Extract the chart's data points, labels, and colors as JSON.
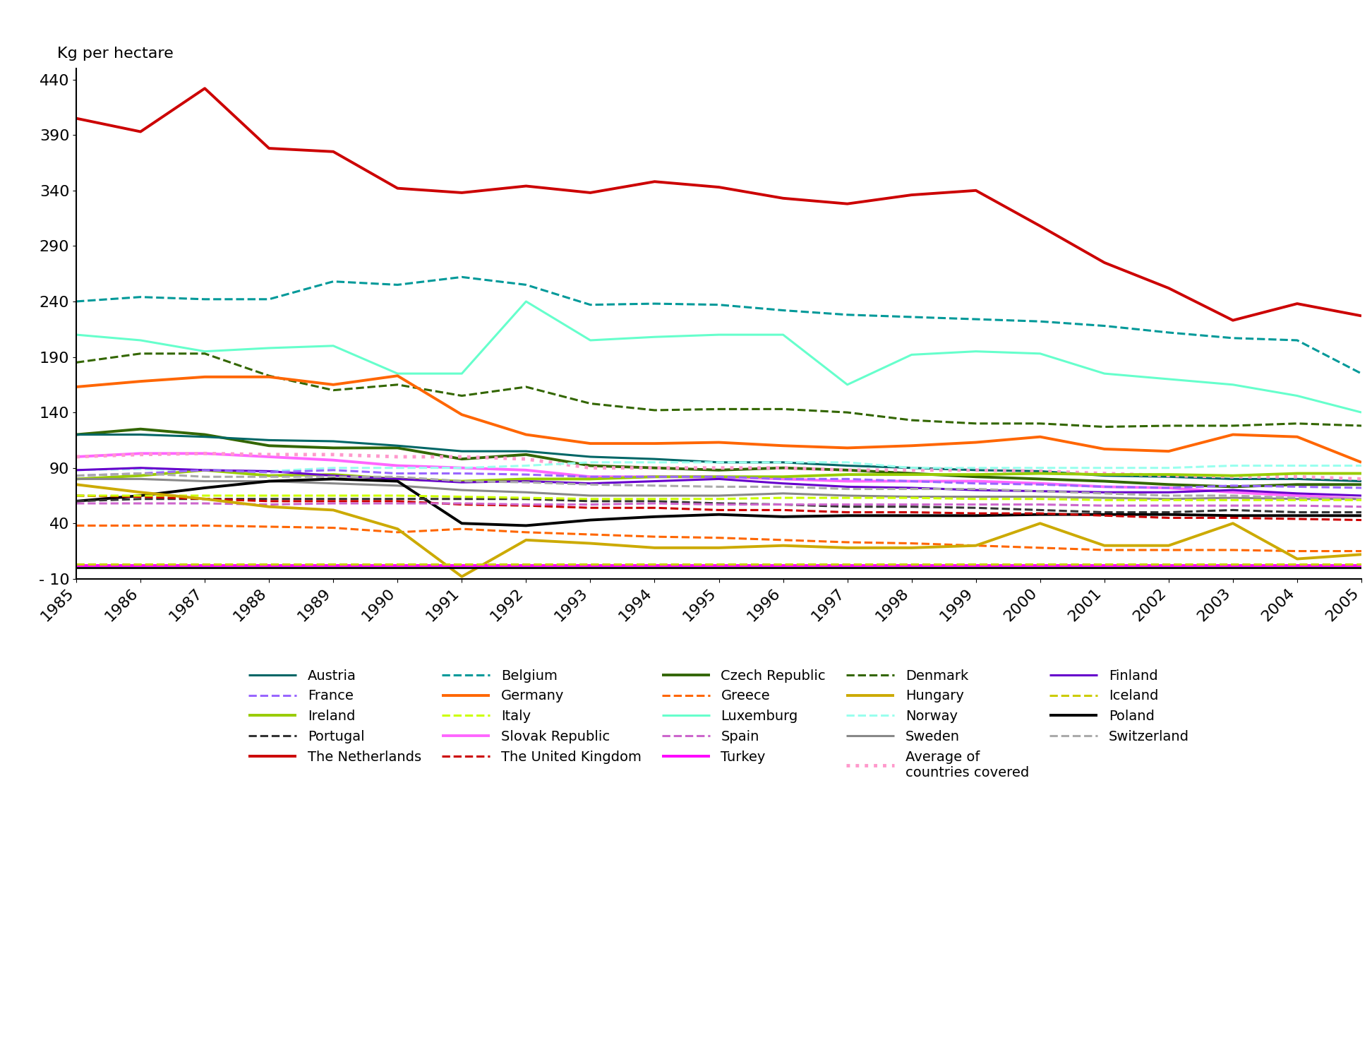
{
  "years": [
    1985,
    1986,
    1987,
    1988,
    1989,
    1990,
    1991,
    1992,
    1993,
    1994,
    1995,
    1996,
    1997,
    1998,
    1999,
    2000,
    2001,
    2002,
    2003,
    2004,
    2005
  ],
  "series": {
    "The Netherlands": {
      "color": "#cc0000",
      "linestyle": "solid",
      "linewidth": 2.8,
      "values": [
        405,
        393,
        432,
        378,
        375,
        342,
        338,
        344,
        338,
        348,
        343,
        333,
        328,
        336,
        340,
        308,
        275,
        252,
        223,
        238,
        227
      ]
    },
    "Belgium": {
      "color": "#009999",
      "linestyle": "dashed",
      "linewidth": 2.2,
      "values": [
        240,
        244,
        242,
        242,
        258,
        255,
        262,
        255,
        237,
        238,
        237,
        232,
        228,
        226,
        224,
        222,
        218,
        212,
        207,
        205,
        175
      ]
    },
    "Luxemburg": {
      "color": "#66ffcc",
      "linestyle": "solid",
      "linewidth": 2.2,
      "values": [
        210,
        205,
        195,
        198,
        200,
        175,
        175,
        240,
        205,
        208,
        210,
        210,
        165,
        192,
        195,
        193,
        175,
        170,
        165,
        155,
        140
      ]
    },
    "Czech Republic": {
      "color": "#336600",
      "linestyle": "solid",
      "linewidth": 2.8,
      "values": [
        120,
        125,
        120,
        110,
        108,
        108,
        98,
        102,
        92,
        90,
        88,
        90,
        88,
        85,
        82,
        80,
        78,
        75,
        73,
        75,
        75
      ]
    },
    "Denmark": {
      "color": "#336600",
      "linestyle": "dashed",
      "linewidth": 2.2,
      "values": [
        185,
        193,
        193,
        173,
        160,
        165,
        155,
        163,
        148,
        142,
        143,
        143,
        140,
        133,
        130,
        130,
        127,
        128,
        128,
        130,
        128
      ]
    },
    "Germany": {
      "color": "#ff6600",
      "linestyle": "solid",
      "linewidth": 2.8,
      "values": [
        163,
        168,
        172,
        172,
        165,
        173,
        138,
        120,
        112,
        112,
        113,
        110,
        108,
        110,
        113,
        118,
        107,
        105,
        120,
        118,
        95
      ]
    },
    "Austria": {
      "color": "#006666",
      "linestyle": "solid",
      "linewidth": 2.2,
      "values": [
        120,
        120,
        118,
        115,
        114,
        110,
        105,
        105,
        100,
        98,
        95,
        95,
        92,
        90,
        88,
        87,
        83,
        82,
        80,
        80,
        78
      ]
    },
    "Slovak Republic": {
      "color": "#ff66ff",
      "linestyle": "solid",
      "linewidth": 2.8,
      "values": [
        100,
        103,
        103,
        100,
        97,
        92,
        90,
        88,
        82,
        82,
        82,
        80,
        78,
        78,
        78,
        76,
        73,
        72,
        68,
        65,
        62
      ]
    },
    "Average of countries covered": {
      "color": "#ff99cc",
      "linestyle": "dotted",
      "linewidth": 3.5,
      "values": [
        100,
        102,
        103,
        102,
        102,
        100,
        100,
        98,
        90,
        90,
        90,
        90,
        88,
        88,
        88,
        87,
        85,
        83,
        82,
        82,
        80
      ]
    },
    "Norway": {
      "color": "#99ffee",
      "linestyle": "dashed",
      "linewidth": 2.2,
      "values": [
        88,
        89,
        88,
        87,
        90,
        90,
        90,
        92,
        95,
        95,
        95,
        95,
        95,
        90,
        90,
        90,
        90,
        90,
        92,
        92,
        92
      ]
    },
    "Ireland": {
      "color": "#99cc00",
      "linestyle": "solid",
      "linewidth": 2.8,
      "values": [
        80,
        83,
        88,
        83,
        84,
        80,
        78,
        80,
        80,
        82,
        82,
        82,
        84,
        84,
        84,
        85,
        84,
        84,
        83,
        85,
        85
      ]
    },
    "Finland": {
      "color": "#6600cc",
      "linestyle": "solid",
      "linewidth": 2.2,
      "values": [
        88,
        90,
        88,
        87,
        83,
        80,
        77,
        78,
        76,
        78,
        80,
        76,
        73,
        72,
        70,
        69,
        68,
        68,
        70,
        67,
        65
      ]
    },
    "France": {
      "color": "#9966ff",
      "linestyle": "dashed",
      "linewidth": 2.2,
      "values": [
        83,
        85,
        88,
        86,
        88,
        85,
        85,
        84,
        82,
        82,
        82,
        80,
        80,
        78,
        76,
        75,
        73,
        72,
        74,
        73,
        72
      ]
    },
    "Sweden": {
      "color": "#888888",
      "linestyle": "solid",
      "linewidth": 2.2,
      "values": [
        80,
        80,
        78,
        78,
        76,
        74,
        70,
        68,
        65,
        65,
        65,
        67,
        65,
        64,
        64,
        64,
        63,
        62,
        63,
        62,
        62
      ]
    },
    "Switzerland": {
      "color": "#aaaaaa",
      "linestyle": "dashed",
      "linewidth": 2.2,
      "values": [
        83,
        85,
        82,
        82,
        82,
        82,
        78,
        77,
        75,
        74,
        73,
        73,
        71,
        71,
        71,
        69,
        67,
        65,
        65,
        63,
        62
      ]
    },
    "Poland": {
      "color": "#000000",
      "linestyle": "solid",
      "linewidth": 2.8,
      "values": [
        60,
        65,
        72,
        78,
        80,
        78,
        40,
        38,
        43,
        46,
        48,
        46,
        47,
        47,
        47,
        48,
        48,
        48,
        47,
        47,
        47
      ]
    },
    "Portugal": {
      "color": "#333333",
      "linestyle": "dashed",
      "linewidth": 2.2,
      "values": [
        60,
        62,
        62,
        62,
        62,
        62,
        62,
        62,
        60,
        60,
        58,
        57,
        55,
        55,
        54,
        52,
        50,
        50,
        52,
        50,
        50
      ]
    },
    "The United Kingdom": {
      "color": "#cc0000",
      "linestyle": "dashed",
      "linewidth": 2.2,
      "values": [
        65,
        64,
        62,
        60,
        60,
        60,
        57,
        56,
        54,
        54,
        52,
        52,
        50,
        50,
        49,
        49,
        47,
        45,
        45,
        44,
        43
      ]
    },
    "Italy": {
      "color": "#ccff00",
      "linestyle": "dashed",
      "linewidth": 2.2,
      "values": [
        65,
        65,
        65,
        65,
        65,
        65,
        64,
        63,
        62,
        62,
        62,
        63,
        63,
        63,
        62,
        62,
        61,
        61,
        61,
        61,
        61
      ]
    },
    "Spain": {
      "color": "#cc66cc",
      "linestyle": "dashed",
      "linewidth": 2.2,
      "values": [
        58,
        58,
        58,
        57,
        58,
        58,
        58,
        57,
        57,
        58,
        57,
        57,
        57,
        57,
        57,
        57,
        56,
        56,
        56,
        56,
        55
      ]
    },
    "Greece": {
      "color": "#ff6600",
      "linestyle": "dashed",
      "linewidth": 2.2,
      "values": [
        38,
        38,
        38,
        37,
        36,
        32,
        35,
        32,
        30,
        28,
        27,
        25,
        23,
        22,
        20,
        18,
        16,
        16,
        16,
        15,
        15
      ]
    },
    "Hungary": {
      "color": "#ccaa00",
      "linestyle": "solid",
      "linewidth": 2.8,
      "values": [
        75,
        68,
        62,
        55,
        52,
        35,
        -8,
        25,
        22,
        18,
        18,
        20,
        18,
        18,
        20,
        40,
        20,
        20,
        40,
        8,
        12
      ]
    },
    "Turkey": {
      "color": "#ff00ff",
      "linestyle": "solid",
      "linewidth": 2.8,
      "values": [
        2,
        2,
        2,
        2,
        2,
        2,
        2,
        2,
        2,
        2,
        2,
        2,
        2,
        2,
        2,
        2,
        2,
        2,
        2,
        2,
        2
      ]
    },
    "Iceland": {
      "color": "#cccc00",
      "linestyle": "dashed",
      "linewidth": 2.2,
      "values": [
        3,
        3,
        3,
        3,
        3,
        3,
        3,
        3,
        3,
        3,
        3,
        3,
        3,
        3,
        3,
        3,
        3,
        3,
        3,
        3,
        3
      ]
    }
  },
  "ylabel": "Kg per hectare",
  "ylim": [
    -10,
    450
  ],
  "yticks": [
    -10,
    40,
    90,
    140,
    190,
    240,
    290,
    340,
    390,
    440
  ],
  "ytick_labels": [
    "- 10",
    "40",
    "90",
    "140",
    "190",
    "240",
    "290",
    "340",
    "390",
    "440"
  ],
  "xlim_min": 1985,
  "xlim_max": 2005,
  "background_color": "#ffffff",
  "legend": [
    {
      "name": "Austria",
      "color": "#006666",
      "linestyle": "solid",
      "linewidth": 2.2
    },
    {
      "name": "France",
      "color": "#9966ff",
      "linestyle": "dashed",
      "linewidth": 2.2
    },
    {
      "name": "Ireland",
      "color": "#99cc00",
      "linestyle": "solid",
      "linewidth": 2.8
    },
    {
      "name": "Portugal",
      "color": "#333333",
      "linestyle": "dashed",
      "linewidth": 2.2
    },
    {
      "name": "The Netherlands",
      "color": "#cc0000",
      "linestyle": "solid",
      "linewidth": 2.8
    },
    {
      "name": "Belgium",
      "color": "#009999",
      "linestyle": "dashed",
      "linewidth": 2.2
    },
    {
      "name": "Germany",
      "color": "#ff6600",
      "linestyle": "solid",
      "linewidth": 2.8
    },
    {
      "name": "Italy",
      "color": "#ccff00",
      "linestyle": "dashed",
      "linewidth": 2.2
    },
    {
      "name": "Slovak Republic",
      "color": "#ff66ff",
      "linestyle": "solid",
      "linewidth": 2.8
    },
    {
      "name": "The United Kingdom",
      "color": "#cc0000",
      "linestyle": "dashed",
      "linewidth": 2.2
    },
    {
      "name": "Czech Republic",
      "color": "#336600",
      "linestyle": "solid",
      "linewidth": 2.8
    },
    {
      "name": "Greece",
      "color": "#ff6600",
      "linestyle": "dashed",
      "linewidth": 2.2
    },
    {
      "name": "Luxemburg",
      "color": "#66ffcc",
      "linestyle": "solid",
      "linewidth": 2.2
    },
    {
      "name": "Spain",
      "color": "#cc66cc",
      "linestyle": "dashed",
      "linewidth": 2.2
    },
    {
      "name": "Turkey",
      "color": "#ff00ff",
      "linestyle": "solid",
      "linewidth": 2.8
    },
    {
      "name": "Denmark",
      "color": "#336600",
      "linestyle": "dashed",
      "linewidth": 2.2
    },
    {
      "name": "Hungary",
      "color": "#ccaa00",
      "linestyle": "solid",
      "linewidth": 2.8
    },
    {
      "name": "Norway",
      "color": "#99ffee",
      "linestyle": "dashed",
      "linewidth": 2.2
    },
    {
      "name": "Sweden",
      "color": "#888888",
      "linestyle": "solid",
      "linewidth": 2.2
    },
    {
      "name": "Average of\ncountries covered",
      "color": "#ff99cc",
      "linestyle": "dotted",
      "linewidth": 3.5
    },
    {
      "name": "Finland",
      "color": "#6600cc",
      "linestyle": "solid",
      "linewidth": 2.2
    },
    {
      "name": "Iceland",
      "color": "#cccc00",
      "linestyle": "dashed",
      "linewidth": 2.2
    },
    {
      "name": "Poland",
      "color": "#000000",
      "linestyle": "solid",
      "linewidth": 2.8
    },
    {
      "name": "Switzerland",
      "color": "#aaaaaa",
      "linestyle": "dashed",
      "linewidth": 2.2
    },
    {
      "name": "",
      "color": null,
      "linestyle": "solid",
      "linewidth": 1.0
    }
  ]
}
